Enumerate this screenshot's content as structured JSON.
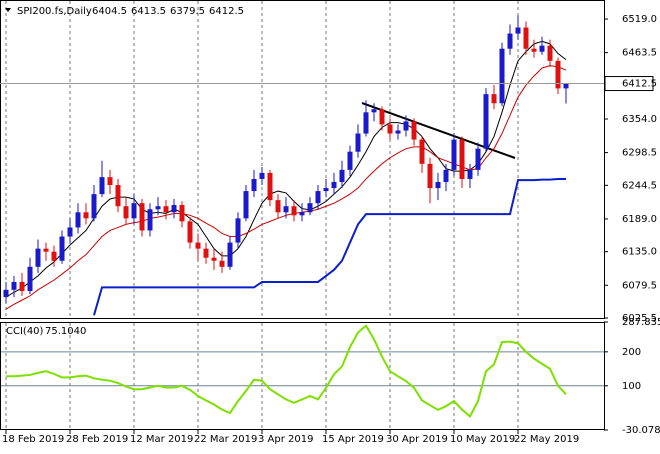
{
  "chart_data": [
    {
      "type": "candlestick",
      "title": "SPI200.fs,Daily",
      "categories": [
        "18 Feb 2019",
        null,
        null,
        null,
        null,
        null,
        null,
        null,
        "28 Feb 2019",
        null,
        null,
        null,
        null,
        null,
        null,
        null,
        "12 Mar 2019",
        null,
        null,
        null,
        null,
        null,
        null,
        null,
        "22 Mar 2019",
        null,
        null,
        null,
        null,
        null,
        null,
        null,
        "3 Apr 2019",
        null,
        null,
        null,
        null,
        null,
        null,
        null,
        "15 Apr 2019",
        null,
        null,
        null,
        null,
        null,
        null,
        null,
        "30 Apr 2019",
        null,
        null,
        null,
        null,
        null,
        null,
        null,
        "10 May 2019",
        null,
        null,
        null,
        null,
        null,
        null,
        null,
        "22 May 2019",
        null,
        null,
        null,
        null,
        null,
        null
      ],
      "open": [
        6060,
        6072,
        6085,
        6070,
        6110,
        6140,
        6135,
        6120,
        6160,
        6175,
        6200,
        6190,
        6230,
        6258,
        6245,
        6210,
        6190,
        6215,
        6170,
        6205,
        6210,
        6200,
        6212,
        6185,
        6150,
        6140,
        6125,
        6120,
        6110,
        6150,
        6190,
        6235,
        6255,
        6265,
        6220,
        6200,
        6210,
        6195,
        6200,
        6215,
        6235,
        6240,
        6250,
        6270,
        6300,
        6330,
        6365,
        6370,
        6345,
        6330,
        6335,
        6350,
        6320,
        6280,
        6240,
        6250,
        6270,
        6320,
        6255,
        6270,
        6305,
        6395,
        6380,
        6470,
        6495,
        6505,
        6470,
        6465,
        6475,
        6450,
        6404.5
      ],
      "high": [
        6085,
        6095,
        6100,
        6125,
        6155,
        6150,
        6145,
        6170,
        6190,
        6215,
        6215,
        6245,
        6285,
        6270,
        6255,
        6225,
        6230,
        6222,
        6215,
        6225,
        6220,
        6222,
        6218,
        6192,
        6165,
        6150,
        6140,
        6135,
        6160,
        6200,
        6245,
        6270,
        6275,
        6270,
        6230,
        6225,
        6220,
        6215,
        6225,
        6245,
        6255,
        6265,
        6285,
        6310,
        6345,
        6385,
        6380,
        6375,
        6355,
        6345,
        6360,
        6355,
        6325,
        6290,
        6265,
        6280,
        6330,
        6325,
        6280,
        6315,
        6405,
        6410,
        6480,
        6510,
        6525,
        6515,
        6485,
        6490,
        6485,
        6455,
        6413.5
      ],
      "low": [
        6050,
        6060,
        6062,
        6065,
        6100,
        6120,
        6110,
        6115,
        6150,
        6165,
        6180,
        6185,
        6225,
        6230,
        6200,
        6180,
        6180,
        6160,
        6160,
        6195,
        6188,
        6190,
        6175,
        6140,
        6120,
        6115,
        6105,
        6100,
        6105,
        6140,
        6185,
        6225,
        6245,
        6210,
        6190,
        6190,
        6185,
        6185,
        6195,
        6205,
        6225,
        6230,
        6240,
        6260,
        6290,
        6325,
        6350,
        6335,
        6320,
        6320,
        6325,
        6310,
        6265,
        6215,
        6220,
        6235,
        6260,
        6240,
        6240,
        6260,
        6300,
        6370,
        6375,
        6460,
        6485,
        6460,
        6455,
        6460,
        6440,
        6395,
        6379.5
      ],
      "close": [
        6072,
        6085,
        6070,
        6110,
        6140,
        6135,
        6120,
        6160,
        6175,
        6200,
        6190,
        6230,
        6258,
        6245,
        6210,
        6190,
        6215,
        6170,
        6205,
        6210,
        6200,
        6212,
        6185,
        6150,
        6140,
        6125,
        6120,
        6110,
        6150,
        6190,
        6235,
        6255,
        6265,
        6220,
        6200,
        6210,
        6195,
        6200,
        6215,
        6235,
        6240,
        6250,
        6270,
        6300,
        6330,
        6365,
        6370,
        6345,
        6330,
        6335,
        6350,
        6320,
        6280,
        6240,
        6250,
        6270,
        6320,
        6255,
        6270,
        6305,
        6395,
        6380,
        6470,
        6495,
        6505,
        6470,
        6465,
        6475,
        6450,
        6404.5,
        6412.5
      ],
      "up_color": "#1a1acc",
      "down_color": "#e01010",
      "lines": [
        {
          "color": "#000000",
          "values": [
            6060,
            6068,
            6075,
            6085,
            6095,
            6108,
            6118,
            6132,
            6146,
            6158,
            6170,
            6190,
            6210,
            6222,
            6225,
            6225,
            6222,
            6205,
            6198,
            6200,
            6198,
            6205,
            6200,
            6190,
            6180,
            6160,
            6140,
            6128,
            6128,
            6140,
            6160,
            6188,
            6215,
            6230,
            6235,
            6232,
            6218,
            6206,
            6204,
            6210,
            6218,
            6230,
            6242,
            6258,
            6278,
            6300,
            6325,
            6340,
            6348,
            6348,
            6345,
            6338,
            6325,
            6305,
            6290,
            6272,
            6268,
            6268,
            6270,
            6280,
            6300,
            6325,
            6365,
            6410,
            6450,
            6465,
            6478,
            6482,
            6478,
            6462,
            6452
          ]
        },
        {
          "color": "#cc0000",
          "values": [
            6040,
            6048,
            6055,
            6062,
            6072,
            6080,
            6088,
            6098,
            6108,
            6120,
            6130,
            6145,
            6160,
            6170,
            6175,
            6180,
            6183,
            6185,
            6190,
            6192,
            6195,
            6198,
            6198,
            6195,
            6190,
            6182,
            6175,
            6165,
            6160,
            6160,
            6165,
            6172,
            6180,
            6185,
            6190,
            6195,
            6198,
            6200,
            6202,
            6205,
            6210,
            6215,
            6222,
            6230,
            6240,
            6255,
            6268,
            6280,
            6290,
            6298,
            6305,
            6308,
            6308,
            6300,
            6290,
            6285,
            6280,
            6275,
            6270,
            6272,
            6290,
            6305,
            6330,
            6360,
            6390,
            6410,
            6425,
            6438,
            6442,
            6440,
            6435
          ]
        },
        {
          "color": "#0a1fcc",
          "values": [
            null,
            null,
            null,
            null,
            null,
            null,
            null,
            null,
            null,
            null,
            null,
            6030,
            6076,
            6076,
            6076,
            6076,
            6076,
            6076,
            6076,
            6076,
            6076,
            6076,
            6076,
            6076,
            6076,
            6076,
            6076,
            6076,
            6076,
            6076,
            6076,
            6076,
            6085,
            6085,
            6085,
            6085,
            6085,
            6085,
            6085,
            6085,
            6095,
            6105,
            6120,
            6150,
            6180,
            6197,
            6197,
            6197,
            6197,
            6197,
            6197,
            6197,
            6197,
            6197,
            6197,
            6197,
            6197,
            6197,
            6197,
            6197,
            6197,
            6197,
            6197,
            6197,
            6253,
            6253,
            6253,
            6254,
            6254,
            6255,
            6255
          ]
        }
      ],
      "ylim": [
        6025.5,
        6550.4
      ],
      "yticks": [
        6025.5,
        6079.5,
        {
          "value": 6135,
          "label": "6135.0"
        },
        {
          "value": 6189,
          "label": "6189.0"
        },
        6244.5,
        6298.5,
        {
          "value": 6354,
          "label": "6354.0"
        },
        6463.5,
        {
          "value": 6519,
          "label": "6519.0"
        }
      ],
      "grid": true
    },
    {
      "type": "line",
      "title": "CCI(40)",
      "color": "#7ee000",
      "values": [
        128,
        128,
        130,
        132,
        138,
        143,
        135,
        125,
        125,
        128,
        130,
        122,
        118,
        115,
        108,
        98,
        90,
        90,
        95,
        100,
        95,
        95,
        100,
        88,
        70,
        57,
        45,
        30,
        20,
        55,
        85,
        118,
        115,
        90,
        75,
        60,
        50,
        60,
        70,
        60,
        94,
        134,
        157,
        214,
        257,
        277,
        237,
        186,
        143,
        128,
        114,
        94,
        57,
        43,
        29,
        40,
        55,
        30,
        10,
        55,
        143,
        163,
        229,
        230,
        225,
        200,
        180,
        165,
        150,
        100,
        75.104
      ],
      "value_labels": [
        null,
        null,
        null,
        null,
        null,
        null,
        null,
        null,
        null,
        null,
        null,
        null,
        null,
        null,
        null,
        null,
        null,
        null,
        null,
        null,
        null,
        null,
        null,
        null,
        null,
        null,
        null,
        null,
        null,
        null,
        null,
        null,
        null,
        null,
        null,
        null,
        null,
        null,
        null,
        null,
        null,
        null,
        null,
        null,
        null,
        null,
        null,
        null,
        null,
        null,
        null,
        null,
        null,
        null,
        null,
        null,
        null,
        null,
        null,
        null,
        null,
        null,
        null,
        null,
        null,
        null,
        null,
        null,
        null,
        null,
        "75.1040"
      ],
      "ylim": [
        -30.0785,
        287.8357
      ],
      "yticks": [
        -30.0785,
        100,
        200,
        287.8357
      ],
      "levels": [
        100,
        200
      ]
    }
  ]
}
